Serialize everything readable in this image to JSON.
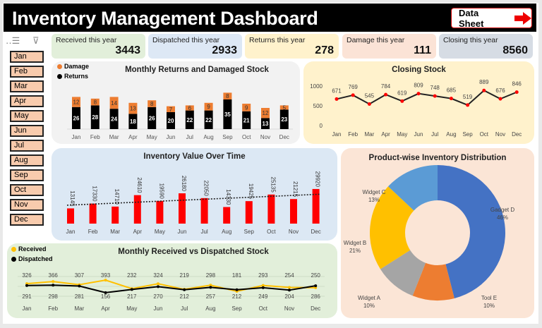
{
  "header": {
    "title": "Inventory Management Dashboard",
    "data_sheet_button": "Data Sheet"
  },
  "slicer": {
    "selected": "Jan",
    "items": [
      "Jan",
      "Feb",
      "Mar",
      "Apr",
      "May",
      "Jun",
      "Jul",
      "Aug",
      "Sep",
      "Oct",
      "Nov",
      "Dec"
    ]
  },
  "kpis": [
    {
      "label": "Received this year",
      "value": "3443",
      "color": "#e2efda"
    },
    {
      "label": "Dispatched this year",
      "value": "2933",
      "color": "#dde8f5"
    },
    {
      "label": "Returns this year",
      "value": "278",
      "color": "#fff2cc"
    },
    {
      "label": "Damage this year",
      "value": "111",
      "color": "#fbe3d6"
    },
    {
      "label": "Closing this year",
      "value": "8560",
      "color": "#d6dce4"
    }
  ],
  "chart_data": [
    {
      "type": "bar",
      "title": "Monthly Returns and Damaged Stock",
      "stacked": true,
      "legend": "top-left",
      "categories": [
        "Jan",
        "Feb",
        "Mar",
        "Apr",
        "May",
        "Jun",
        "Jul",
        "Aug",
        "Sep",
        "Oct",
        "Nov",
        "Dec"
      ],
      "series": [
        {
          "name": "Returns",
          "color": "#000000",
          "values": [
            26,
            28,
            24,
            18,
            26,
            20,
            22,
            22,
            35,
            21,
            13,
            23
          ]
        },
        {
          "name": "Damage",
          "color": "#ed7d31",
          "values": [
            12,
            8,
            14,
            13,
            8,
            7,
            6,
            9,
            8,
            9,
            12,
            5
          ]
        }
      ]
    },
    {
      "type": "line",
      "title": "Closing Stock",
      "categories": [
        "Jan",
        "Feb",
        "Mar",
        "Apr",
        "May",
        "Jun",
        "Jul",
        "Aug",
        "Sep",
        "Oct",
        "Nov",
        "Dec"
      ],
      "yticks": [
        0,
        500,
        1000
      ],
      "ylim": [
        0,
        1000
      ],
      "series": [
        {
          "color": "#ff0000",
          "values": [
            671,
            769,
            545,
            784,
            619,
            809,
            748,
            685,
            519,
            889,
            676,
            846
          ]
        }
      ]
    },
    {
      "type": "bar",
      "title": "Inventory Value Over Time",
      "trendline": "linear dotted",
      "categories": [
        "Jan",
        "Feb",
        "Mar",
        "Apr",
        "May",
        "Jun",
        "Jul",
        "Aug",
        "Sep",
        "Oct",
        "Nov",
        "Dec"
      ],
      "series": [
        {
          "color": "#ff0000",
          "values": [
            13145,
            17330,
            14710,
            24610,
            19590,
            26180,
            22050,
            14330,
            19425,
            25135,
            21215,
            29920
          ]
        }
      ]
    },
    {
      "type": "pie",
      "donut": true,
      "title": "Product-wise Inventory Distribution",
      "categories": [
        "Gadget D",
        "Tool E",
        "Widget A",
        "Widget B",
        "Widget C"
      ],
      "values": [
        46,
        10,
        10,
        21,
        13
      ],
      "colors": [
        "#4472c4",
        "#ed7d31",
        "#a5a5a5",
        "#ffc000",
        "#5b9bd5"
      ]
    },
    {
      "type": "line",
      "title": "Monthly Received vs Dispatched Stock",
      "legend": "top-left",
      "categories": [
        "Jan",
        "Feb",
        "Mar",
        "Apr",
        "May",
        "Jun",
        "Jul",
        "Aug",
        "Sep",
        "Oct",
        "Nov",
        "Dec"
      ],
      "series": [
        {
          "name": "Received",
          "color": "#ffc000",
          "values": [
            326,
            366,
            307,
            393,
            232,
            324,
            219,
            298,
            181,
            293,
            254,
            250
          ]
        },
        {
          "name": "Dispatched",
          "color": "#000000",
          "values": [
            291,
            298,
            281,
            156,
            217,
            270,
            212,
            257,
            212,
            249,
            204,
            286
          ]
        }
      ]
    }
  ]
}
